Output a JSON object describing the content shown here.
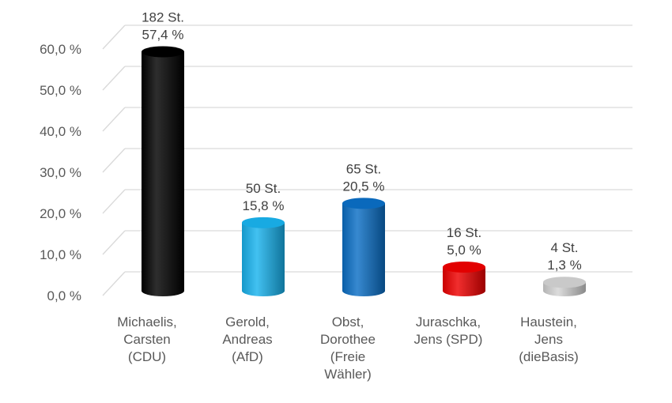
{
  "chart_data": {
    "type": "bar",
    "style": "3d-cylinder",
    "categories": [
      [
        "Michaelis,",
        "Carsten",
        "(CDU)"
      ],
      [
        "Gerold,",
        "Andreas",
        "(AfD)"
      ],
      [
        "Obst,",
        "Dorothee",
        "(Freie",
        "Wähler)"
      ],
      [
        "Juraschka,",
        "Jens (SPD)"
      ],
      [
        "Haustein,",
        "Jens",
        "(dieBasis)"
      ]
    ],
    "values": [
      57.4,
      15.8,
      20.5,
      5.0,
      1.3
    ],
    "votes": [
      "182 St.",
      "50 St.",
      "65 St.",
      "16 St.",
      "4 St."
    ],
    "percent_labels": [
      "57,4 %",
      "15,8 %",
      "20,5 %",
      "5,0 %",
      "1,3 %"
    ],
    "colors": [
      "#000000",
      "#19b3ee",
      "#0b6fc6",
      "#ee0000",
      "#d4d4d4"
    ],
    "ylim": [
      0,
      60
    ],
    "yticks": [
      0,
      10,
      20,
      30,
      40,
      50,
      60
    ],
    "ytick_labels": [
      "0,0 %",
      "10,0 %",
      "20,0 %",
      "30,0 %",
      "40,0 %",
      "50,0 %",
      "60,0 %"
    ],
    "grid": true,
    "title": "",
    "xlabel": "",
    "ylabel": ""
  }
}
